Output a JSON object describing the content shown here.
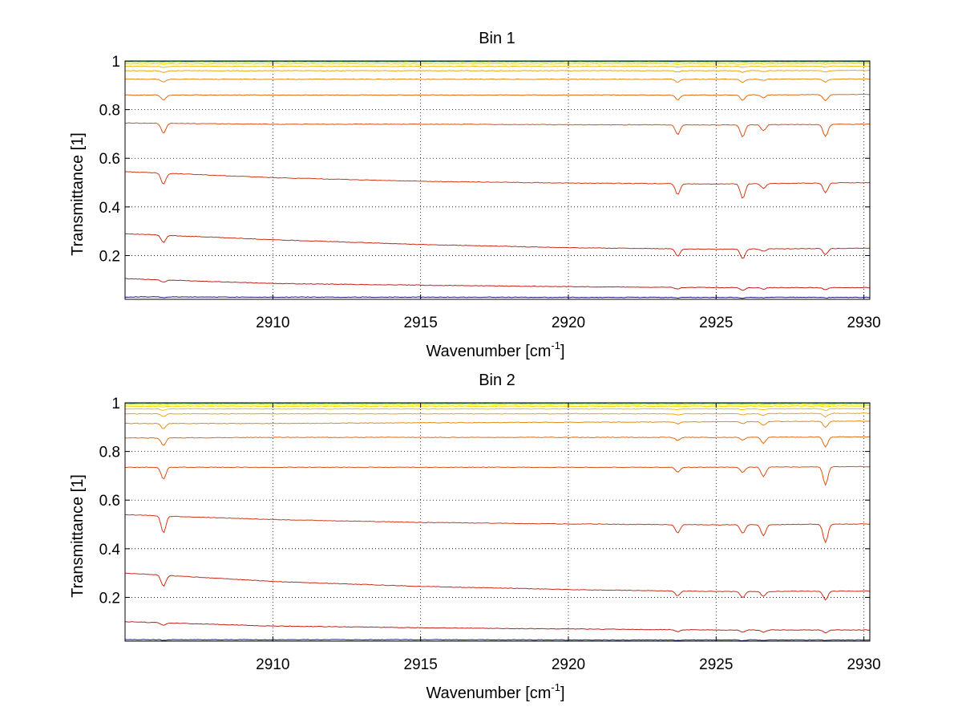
{
  "chart_data": [
    {
      "type": "line",
      "title": "Bin 1",
      "xlabel": "Wavenumber [cm",
      "xlabel_superscript": "-1",
      "xlabel_suffix": "]",
      "ylabel": "Transmittance [1]",
      "xlim": [
        2905,
        2930.2
      ],
      "ylim": [
        0.02,
        1.0
      ],
      "x_ticks": [
        2910,
        2915,
        2920,
        2925,
        2930
      ],
      "x_tick_labels": [
        "2910",
        "2915",
        "2920",
        "2925",
        "2930"
      ],
      "y_ticks": [
        0.2,
        0.4,
        0.6,
        0.8,
        1
      ],
      "y_tick_labels": [
        "0.2",
        "0.4",
        "0.6",
        "0.8",
        "1"
      ],
      "grid": true,
      "absorption_lines_cm1": [
        2906.3,
        2923.7,
        2925.9,
        2926.6,
        2928.7
      ],
      "series": [
        {
          "baseline": [
            0.03,
            0.029,
            0.029,
            0.028,
            0.028,
            0.028
          ],
          "depths": [
            0.003,
            0.002,
            0.003,
            0.002,
            0.002
          ],
          "color": "#1a1a8c"
        },
        {
          "baseline": [
            0.105,
            0.085,
            0.078,
            0.072,
            0.068,
            0.068
          ],
          "depths": [
            0.01,
            0.008,
            0.012,
            0.006,
            0.008
          ],
          "color": "#c0201a"
        },
        {
          "baseline": [
            0.29,
            0.265,
            0.245,
            0.232,
            0.226,
            0.23
          ],
          "depths": [
            0.03,
            0.03,
            0.04,
            0.01,
            0.025
          ],
          "color": "#cc2a18"
        },
        {
          "baseline": [
            0.545,
            0.52,
            0.505,
            0.498,
            0.494,
            0.5
          ],
          "depths": [
            0.045,
            0.045,
            0.06,
            0.02,
            0.04
          ],
          "color": "#d23a16"
        },
        {
          "baseline": [
            0.745,
            0.74,
            0.74,
            0.738,
            0.737,
            0.74
          ],
          "depths": [
            0.04,
            0.04,
            0.05,
            0.025,
            0.05
          ],
          "color": "#da5014"
        },
        {
          "baseline": [
            0.86,
            0.86,
            0.86,
            0.86,
            0.86,
            0.862
          ],
          "depths": [
            0.02,
            0.02,
            0.022,
            0.012,
            0.025
          ],
          "color": "#e06a12"
        },
        {
          "baseline": [
            0.925,
            0.925,
            0.925,
            0.925,
            0.925,
            0.926
          ],
          "depths": [
            0.012,
            0.012,
            0.013,
            0.006,
            0.012
          ],
          "color": "#e58a10"
        },
        {
          "baseline": [
            0.96,
            0.96,
            0.96,
            0.96,
            0.96,
            0.961
          ],
          "depths": [
            0.007,
            0.006,
            0.007,
            0.004,
            0.007
          ],
          "color": "#eba50e"
        },
        {
          "baseline": [
            0.978,
            0.978,
            0.978,
            0.978,
            0.978,
            0.979
          ],
          "depths": [
            0.004,
            0.003,
            0.004,
            0.002,
            0.004
          ],
          "color": "#efbf0c"
        },
        {
          "baseline": [
            0.988,
            0.988,
            0.988,
            0.988,
            0.988,
            0.989
          ],
          "depths": [
            0.002,
            0.002,
            0.002,
            0.001,
            0.002
          ],
          "color": "#f2d80a"
        },
        {
          "baseline": [
            0.994,
            0.994,
            0.994,
            0.994,
            0.994,
            0.994
          ],
          "depths": [
            0.001,
            0.001,
            0.001,
            0.001,
            0.001
          ],
          "color": "#e6ef10"
        },
        {
          "baseline": [
            0.997,
            0.997,
            0.997,
            0.997,
            0.997,
            0.997
          ],
          "depths": [
            0.001,
            0.001,
            0.001,
            0.001,
            0.001
          ],
          "color": "#a6e63a"
        },
        {
          "baseline": [
            0.999,
            0.999,
            0.999,
            0.999,
            0.999,
            0.999
          ],
          "depths": [
            0.0005,
            0.0005,
            0.0005,
            0.0005,
            0.0005
          ],
          "color": "#40c080"
        },
        {
          "baseline": [
            1.0,
            1.0,
            1.0,
            1.0,
            1.0,
            1.0
          ],
          "depths": [
            0.0003,
            0.0003,
            0.0003,
            0.0003,
            0.0003
          ],
          "color": "#1f5fb0"
        }
      ]
    },
    {
      "type": "line",
      "title": "Bin 2",
      "xlabel": "Wavenumber [cm",
      "xlabel_superscript": "-1",
      "xlabel_suffix": "]",
      "ylabel": "Transmittance [1]",
      "xlim": [
        2905,
        2930.2
      ],
      "ylim": [
        0.02,
        1.0
      ],
      "x_ticks": [
        2910,
        2915,
        2920,
        2925,
        2930
      ],
      "x_tick_labels": [
        "2910",
        "2915",
        "2920",
        "2925",
        "2930"
      ],
      "y_ticks": [
        0.2,
        0.4,
        0.6,
        0.8,
        1
      ],
      "y_tick_labels": [
        "0.2",
        "0.4",
        "0.6",
        "0.8",
        "1"
      ],
      "grid": true,
      "absorption_lines_cm1": [
        2906.3,
        2923.7,
        2925.9,
        2926.6,
        2928.7
      ],
      "series": [
        {
          "baseline": [
            0.026,
            0.026,
            0.026,
            0.025,
            0.025,
            0.025
          ],
          "depths": [
            0.003,
            0.002,
            0.003,
            0.002,
            0.002
          ],
          "color": "#1a1a8c"
        },
        {
          "baseline": [
            0.1,
            0.082,
            0.075,
            0.07,
            0.066,
            0.066
          ],
          "depths": [
            0.01,
            0.008,
            0.01,
            0.01,
            0.012
          ],
          "color": "#c0201a"
        },
        {
          "baseline": [
            0.3,
            0.265,
            0.245,
            0.232,
            0.224,
            0.226
          ],
          "depths": [
            0.045,
            0.02,
            0.025,
            0.02,
            0.035
          ],
          "color": "#cc2a18"
        },
        {
          "baseline": [
            0.54,
            0.52,
            0.508,
            0.502,
            0.498,
            0.502
          ],
          "depths": [
            0.07,
            0.035,
            0.035,
            0.045,
            0.075
          ],
          "color": "#d23a16"
        },
        {
          "baseline": [
            0.735,
            0.735,
            0.735,
            0.735,
            0.735,
            0.738
          ],
          "depths": [
            0.05,
            0.02,
            0.022,
            0.04,
            0.075
          ],
          "color": "#da5014"
        },
        {
          "baseline": [
            0.855,
            0.858,
            0.858,
            0.858,
            0.858,
            0.86
          ],
          "depths": [
            0.03,
            0.012,
            0.012,
            0.025,
            0.04
          ],
          "color": "#e06a12"
        },
        {
          "baseline": [
            0.915,
            0.915,
            0.918,
            0.92,
            0.922,
            0.925
          ],
          "depths": [
            0.022,
            0.008,
            0.008,
            0.015,
            0.025
          ],
          "color": "#e58a10"
        },
        {
          "baseline": [
            0.955,
            0.955,
            0.955,
            0.955,
            0.955,
            0.957
          ],
          "depths": [
            0.012,
            0.005,
            0.005,
            0.008,
            0.014
          ],
          "color": "#eba50e"
        },
        {
          "baseline": [
            0.975,
            0.975,
            0.975,
            0.975,
            0.975,
            0.976
          ],
          "depths": [
            0.006,
            0.003,
            0.003,
            0.004,
            0.008
          ],
          "color": "#efbf0c"
        },
        {
          "baseline": [
            0.986,
            0.986,
            0.986,
            0.986,
            0.986,
            0.987
          ],
          "depths": [
            0.003,
            0.002,
            0.002,
            0.002,
            0.004
          ],
          "color": "#f2d80a"
        },
        {
          "baseline": [
            0.993,
            0.993,
            0.993,
            0.993,
            0.993,
            0.993
          ],
          "depths": [
            0.002,
            0.001,
            0.001,
            0.001,
            0.002
          ],
          "color": "#e6ef10"
        },
        {
          "baseline": [
            0.997,
            0.997,
            0.997,
            0.997,
            0.997,
            0.997
          ],
          "depths": [
            0.001,
            0.001,
            0.001,
            0.001,
            0.001
          ],
          "color": "#a6e63a"
        },
        {
          "baseline": [
            0.999,
            0.999,
            0.999,
            0.999,
            0.999,
            0.999
          ],
          "depths": [
            0.0005,
            0.0005,
            0.0005,
            0.0005,
            0.0005
          ],
          "color": "#40c080"
        },
        {
          "baseline": [
            1.0,
            1.0,
            1.0,
            1.0,
            1.0,
            1.0
          ],
          "depths": [
            0.0003,
            0.0003,
            0.0003,
            0.0003,
            0.0003
          ],
          "color": "#1f5fb0"
        }
      ]
    }
  ]
}
